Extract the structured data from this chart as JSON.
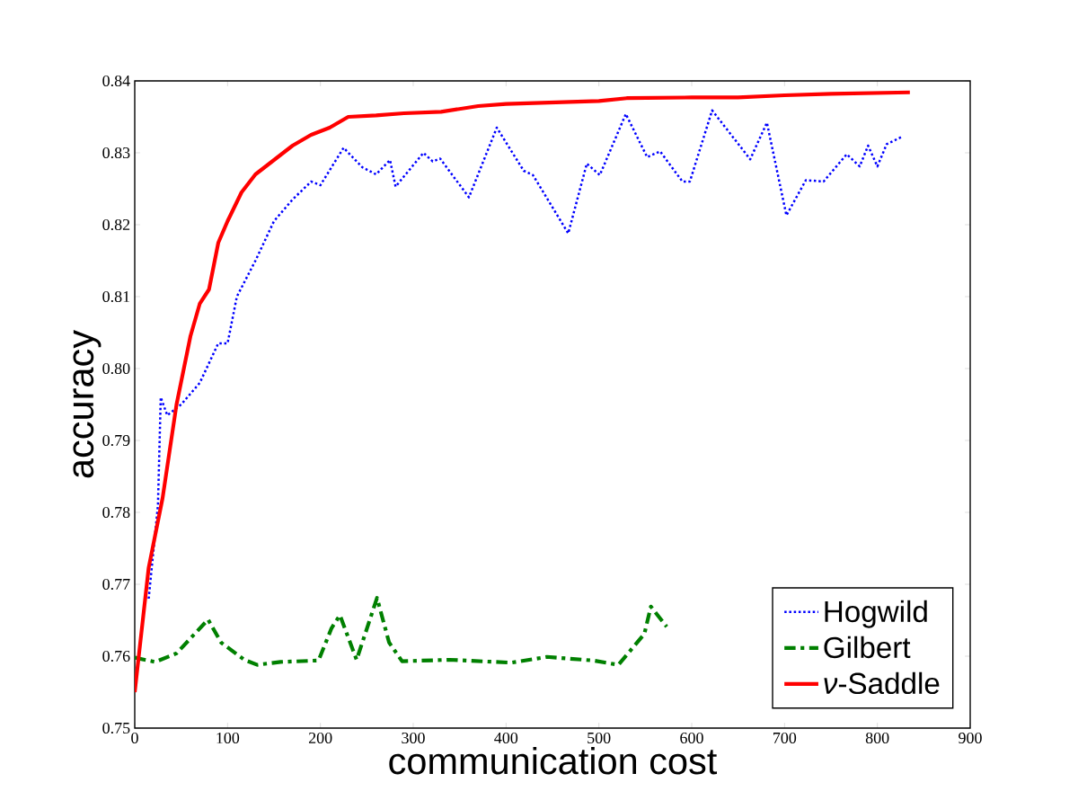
{
  "chart_data": {
    "type": "line",
    "xlabel": "communication cost",
    "ylabel": "accuracy",
    "xlim": [
      0,
      900
    ],
    "ylim": [
      0.75,
      0.84
    ],
    "xticks": [
      0,
      100,
      200,
      300,
      400,
      500,
      600,
      700,
      800,
      900
    ],
    "yticks": [
      {
        "value": 0.75,
        "label": "0.75"
      },
      {
        "value": 0.76,
        "label": "0.76"
      },
      {
        "value": 0.77,
        "label": "0.77"
      },
      {
        "value": 0.78,
        "label": "0.78"
      },
      {
        "value": 0.79,
        "label": "0.79"
      },
      {
        "value": 0.8,
        "label": "0.80"
      },
      {
        "value": 0.81,
        "label": "0.81"
      },
      {
        "value": 0.82,
        "label": "0.82"
      },
      {
        "value": 0.83,
        "label": "0.83"
      },
      {
        "value": 0.84,
        "label": "0.84"
      }
    ],
    "legend": "bottom right",
    "grid": false,
    "series": [
      {
        "name": "Hogwild",
        "color": "#0000ff",
        "line_style": "dotted",
        "x": [
          15,
          25,
          28,
          35,
          50,
          70,
          90,
          100,
          110,
          130,
          150,
          170,
          190,
          200,
          225,
          245,
          260,
          275,
          281,
          311,
          321,
          329,
          360,
          390,
          419,
          429,
          467,
          487,
          501,
          529,
          552,
          566,
          590,
          598,
          622,
          663,
          681,
          702,
          723,
          742,
          767,
          781,
          790,
          800,
          810,
          826
        ],
        "values": [
          0.768,
          0.781,
          0.796,
          0.7935,
          0.795,
          0.798,
          0.8035,
          0.8035,
          0.81,
          0.815,
          0.8205,
          0.8235,
          0.826,
          0.8255,
          0.8307,
          0.828,
          0.827,
          0.829,
          0.8253,
          0.83,
          0.8288,
          0.8292,
          0.8238,
          0.8335,
          0.8275,
          0.8269,
          0.8188,
          0.8285,
          0.8269,
          0.8354,
          0.8294,
          0.8302,
          0.826,
          0.826,
          0.8359,
          0.8291,
          0.8342,
          0.8213,
          0.8262,
          0.826,
          0.8298,
          0.8281,
          0.831,
          0.8281,
          0.8312,
          0.8322
        ]
      },
      {
        "name": "Gilbert",
        "color": "#008000",
        "line_style": "dashdot",
        "x": [
          0,
          22,
          45,
          79,
          93,
          118,
          132,
          157,
          198,
          212,
          221,
          239,
          261,
          274,
          288,
          339,
          406,
          444,
          494,
          521,
          549,
          556,
          573
        ],
        "values": [
          0.7598,
          0.7592,
          0.7604,
          0.7651,
          0.7619,
          0.7595,
          0.7588,
          0.7592,
          0.7594,
          0.7639,
          0.7657,
          0.7595,
          0.7681,
          0.7619,
          0.7593,
          0.7595,
          0.7591,
          0.7599,
          0.7594,
          0.7588,
          0.7631,
          0.7669,
          0.7641
        ]
      },
      {
        "name": "*ν*-Saddle",
        "color": "#ff0000",
        "line_style": "solid",
        "x": [
          0,
          15,
          30,
          45,
          60,
          70,
          80,
          90,
          100,
          115,
          130,
          150,
          170,
          190,
          210,
          230,
          260,
          290,
          330,
          370,
          400,
          450,
          500,
          530,
          600,
          650,
          700,
          750,
          835
        ],
        "values": [
          0.755,
          0.7723,
          0.782,
          0.795,
          0.8045,
          0.809,
          0.811,
          0.8175,
          0.8205,
          0.8245,
          0.827,
          0.829,
          0.831,
          0.8325,
          0.8335,
          0.835,
          0.8352,
          0.8355,
          0.8357,
          0.8365,
          0.8368,
          0.837,
          0.8372,
          0.8376,
          0.8377,
          0.8377,
          0.838,
          0.8382,
          0.8384
        ]
      }
    ]
  }
}
